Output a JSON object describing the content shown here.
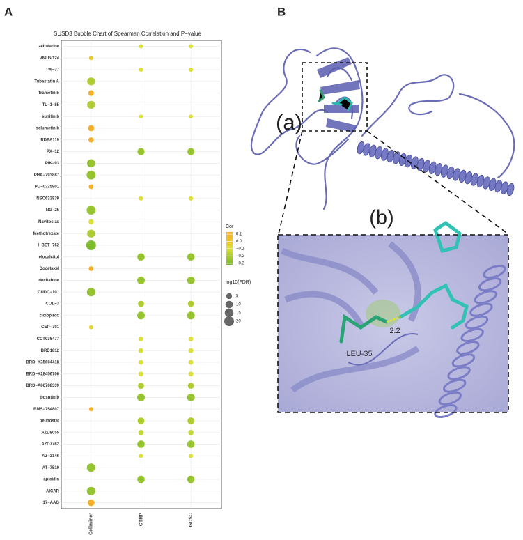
{
  "panel_labels": [
    "A",
    "B"
  ],
  "chart_data": {
    "type": "bubble",
    "title": "SUSD3 Bubble Chart of Spearman Correlation and P−value",
    "x_categories": [
      "Cellminer",
      "CTRP",
      "GDSC"
    ],
    "y_categories": [
      "zebularine",
      "VNLG/124",
      "TW−37",
      "Tubastatin A",
      "Trametinib",
      "TL−1−85",
      "sunitinib",
      "selumetinib",
      "RDEA119",
      "PX−12",
      "PIK−93",
      "PHA−793887",
      "PD−0325901",
      "NSC632839",
      "NG−25",
      "Navitoclax",
      "Methotrexate",
      "I−BET−762",
      "elocalcitol",
      "Docetaxel",
      "decitabine",
      "CUDC−101",
      "COL−3",
      "ciclopirox",
      "CEP−701",
      "CCT036477",
      "BRD1812",
      "BRD−K35604418",
      "BRD−K28456706",
      "BRD−A86708339",
      "bosutinib",
      "BMS−754807",
      "belinostat",
      "AZD8055",
      "AZD7762",
      "AZ−3146",
      "AT−7519",
      "apicidin",
      "AICAR",
      "17−AAG"
    ],
    "points": [
      {
        "drug": "zebularine",
        "source": "CTRP",
        "cor": -0.1,
        "log10_fdr": 2
      },
      {
        "drug": "zebularine",
        "source": "GDSC",
        "cor": -0.1,
        "log10_fdr": 2
      },
      {
        "drug": "VNLG/124",
        "source": "Cellminer",
        "cor": 0,
        "log10_fdr": 2
      },
      {
        "drug": "TW−37",
        "source": "CTRP",
        "cor": -0.1,
        "log10_fdr": 2
      },
      {
        "drug": "TW−37",
        "source": "GDSC",
        "cor": -0.1,
        "log10_fdr": 2
      },
      {
        "drug": "Tubastatin A",
        "source": "Cellminer",
        "cor": -0.2,
        "log10_fdr": 12
      },
      {
        "drug": "Trametinib",
        "source": "Cellminer",
        "cor": 0.1,
        "log10_fdr": 5
      },
      {
        "drug": "TL−1−85",
        "source": "Cellminer",
        "cor": -0.2,
        "log10_fdr": 12
      },
      {
        "drug": "sunitinib",
        "source": "CTRP",
        "cor": -0.1,
        "log10_fdr": 1.5
      },
      {
        "drug": "sunitinib",
        "source": "GDSC",
        "cor": -0.1,
        "log10_fdr": 1.5
      },
      {
        "drug": "selumetinib",
        "source": "Cellminer",
        "cor": 0.1,
        "log10_fdr": 6
      },
      {
        "drug": "RDEA119",
        "source": "Cellminer",
        "cor": 0.1,
        "log10_fdr": 4
      },
      {
        "drug": "PX−12",
        "source": "CTRP",
        "cor": -0.25,
        "log10_fdr": 9
      },
      {
        "drug": "PX−12",
        "source": "GDSC",
        "cor": -0.25,
        "log10_fdr": 9
      },
      {
        "drug": "PIK−93",
        "source": "Cellminer",
        "cor": -0.25,
        "log10_fdr": 13
      },
      {
        "drug": "PHA−793887",
        "source": "Cellminer",
        "cor": -0.25,
        "log10_fdr": 16
      },
      {
        "drug": "PD−0325901",
        "source": "Cellminer",
        "cor": 0.1,
        "log10_fdr": 3
      },
      {
        "drug": "NSC632839",
        "source": "CTRP",
        "cor": -0.1,
        "log10_fdr": 2
      },
      {
        "drug": "NSC632839",
        "source": "GDSC",
        "cor": -0.1,
        "log10_fdr": 2
      },
      {
        "drug": "NG−25",
        "source": "Cellminer",
        "cor": -0.25,
        "log10_fdr": 16
      },
      {
        "drug": "Navitoclax",
        "source": "Cellminer",
        "cor": -0.1,
        "log10_fdr": 4
      },
      {
        "drug": "Methotrexate",
        "source": "Cellminer",
        "cor": -0.2,
        "log10_fdr": 12
      },
      {
        "drug": "I−BET−762",
        "source": "Cellminer",
        "cor": -0.3,
        "log10_fdr": 20
      },
      {
        "drug": "elocalcitol",
        "source": "CTRP",
        "cor": -0.25,
        "log10_fdr": 10
      },
      {
        "drug": "elocalcitol",
        "source": "GDSC",
        "cor": -0.25,
        "log10_fdr": 10
      },
      {
        "drug": "Docetaxel",
        "source": "Cellminer",
        "cor": 0.1,
        "log10_fdr": 3
      },
      {
        "drug": "decitabine",
        "source": "CTRP",
        "cor": -0.25,
        "log10_fdr": 11
      },
      {
        "drug": "decitabine",
        "source": "GDSC",
        "cor": -0.25,
        "log10_fdr": 11
      },
      {
        "drug": "CUDC−101",
        "source": "Cellminer",
        "cor": -0.25,
        "log10_fdr": 14
      },
      {
        "drug": "COL−3",
        "source": "CTRP",
        "cor": -0.2,
        "log10_fdr": 6
      },
      {
        "drug": "COL−3",
        "source": "GDSC",
        "cor": -0.2,
        "log10_fdr": 6
      },
      {
        "drug": "ciclopirox",
        "source": "CTRP",
        "cor": -0.25,
        "log10_fdr": 11
      },
      {
        "drug": "ciclopirox",
        "source": "GDSC",
        "cor": -0.25,
        "log10_fdr": 11
      },
      {
        "drug": "CEP−701",
        "source": "Cellminer",
        "cor": -0.05,
        "log10_fdr": 2
      },
      {
        "drug": "CCT036477",
        "source": "CTRP",
        "cor": -0.1,
        "log10_fdr": 3
      },
      {
        "drug": "CCT036477",
        "source": "GDSC",
        "cor": -0.1,
        "log10_fdr": 3
      },
      {
        "drug": "BRD1812",
        "source": "CTRP",
        "cor": -0.1,
        "log10_fdr": 3
      },
      {
        "drug": "BRD1812",
        "source": "GDSC",
        "cor": -0.1,
        "log10_fdr": 3
      },
      {
        "drug": "BRD−K35604418",
        "source": "CTRP",
        "cor": -0.1,
        "log10_fdr": 3
      },
      {
        "drug": "BRD−K35604418",
        "source": "GDSC",
        "cor": -0.1,
        "log10_fdr": 3
      },
      {
        "drug": "BRD−K28456706",
        "source": "CTRP",
        "cor": -0.1,
        "log10_fdr": 3
      },
      {
        "drug": "BRD−K28456706",
        "source": "GDSC",
        "cor": -0.1,
        "log10_fdr": 3
      },
      {
        "drug": "BRD−A86708339",
        "source": "CTRP",
        "cor": -0.2,
        "log10_fdr": 6
      },
      {
        "drug": "BRD−A86708339",
        "source": "GDSC",
        "cor": -0.2,
        "log10_fdr": 6
      },
      {
        "drug": "bosutinib",
        "source": "CTRP",
        "cor": -0.25,
        "log10_fdr": 11
      },
      {
        "drug": "bosutinib",
        "source": "GDSC",
        "cor": -0.25,
        "log10_fdr": 11
      },
      {
        "drug": "BMS−754807",
        "source": "Cellminer",
        "cor": 0.1,
        "log10_fdr": 2
      },
      {
        "drug": "belinostat",
        "source": "CTRP",
        "cor": -0.2,
        "log10_fdr": 8
      },
      {
        "drug": "belinostat",
        "source": "GDSC",
        "cor": -0.2,
        "log10_fdr": 8
      },
      {
        "drug": "AZD8055",
        "source": "CTRP",
        "cor": -0.15,
        "log10_fdr": 4
      },
      {
        "drug": "AZD8055",
        "source": "GDSC",
        "cor": -0.15,
        "log10_fdr": 4
      },
      {
        "drug": "AZD7762",
        "source": "CTRP",
        "cor": -0.25,
        "log10_fdr": 10
      },
      {
        "drug": "AZD7762",
        "source": "GDSC",
        "cor": -0.25,
        "log10_fdr": 10
      },
      {
        "drug": "AZ−3146",
        "source": "CTRP",
        "cor": -0.1,
        "log10_fdr": 2
      },
      {
        "drug": "AZ−3146",
        "source": "GDSC",
        "cor": -0.1,
        "log10_fdr": 2
      },
      {
        "drug": "AT−7519",
        "source": "Cellminer",
        "cor": -0.25,
        "log10_fdr": 14
      },
      {
        "drug": "apicidin",
        "source": "CTRP",
        "cor": -0.25,
        "log10_fdr": 10
      },
      {
        "drug": "apicidin",
        "source": "GDSC",
        "cor": -0.25,
        "log10_fdr": 10
      },
      {
        "drug": "AICAR",
        "source": "Cellminer",
        "cor": -0.25,
        "log10_fdr": 14
      },
      {
        "drug": "17−AAG",
        "source": "Cellminer",
        "cor": 0.1,
        "log10_fdr": 8
      }
    ],
    "color_label": "Cor",
    "colors": [
      "#76b82a",
      "#dde03a",
      "#f7a823"
    ],
    "colorlim": [
      -0.32,
      0.13
    ],
    "color_ticks": [
      0.1,
      {
        "value": 0,
        "label": "0.0"
      },
      {
        "value": -0.1,
        "label": "−0.1"
      },
      {
        "value": -0.2,
        "label": "−0.2"
      },
      {
        "value": -0.3,
        "label": "−0.3"
      }
    ],
    "size_label": "log10(FDR)",
    "size_ticks": [
      5,
      10,
      15,
      20
    ],
    "grid": true
  },
  "figure_b": {
    "inset_label": "(a)",
    "zoom_label": "(b)",
    "residue_label": "LEU-35",
    "distance_label": "2.2"
  }
}
